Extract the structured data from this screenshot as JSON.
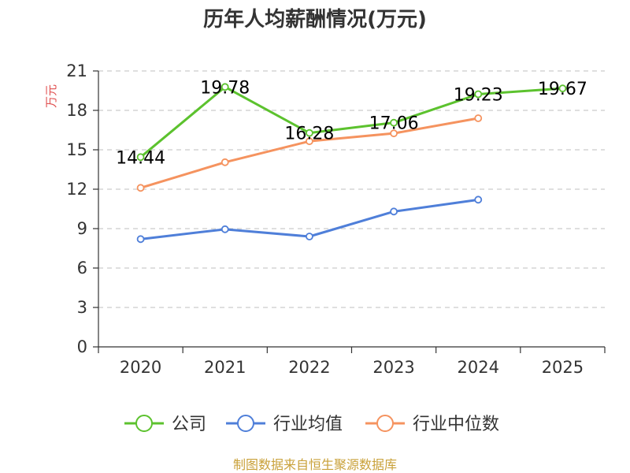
{
  "chart_data": {
    "type": "line",
    "title": "历年人均薪酬情况(万元)",
    "ylabel": "万元",
    "xlabel": "",
    "categories": [
      "2020",
      "2021",
      "2022",
      "2023",
      "2024",
      "2025"
    ],
    "ylim": [
      0,
      21
    ],
    "yticks": [
      0,
      3,
      6,
      9,
      12,
      15,
      18,
      21
    ],
    "grid": true,
    "legend_position": "bottom",
    "series": [
      {
        "name": "公司",
        "color": "#5cc22e",
        "values": [
          14.44,
          19.78,
          16.28,
          17.06,
          19.23,
          19.67
        ],
        "labels": [
          "14.44",
          "19.78",
          "16.28",
          "17.06",
          "19.23",
          "19.67"
        ]
      },
      {
        "name": "行业均值",
        "color": "#4f7fd9",
        "values": [
          8.2,
          8.95,
          8.4,
          10.3,
          11.2,
          null
        ],
        "labels": []
      },
      {
        "name": "行业中位数",
        "color": "#f5935f",
        "values": [
          12.1,
          14.05,
          15.65,
          16.25,
          17.4,
          null
        ],
        "labels": []
      }
    ],
    "source": "制图数据来自恒生聚源数据库",
    "colors": {
      "ylabel": "#e05050",
      "source": "#c9a13a",
      "axis": "#333333",
      "grid": "#cccccc"
    }
  }
}
